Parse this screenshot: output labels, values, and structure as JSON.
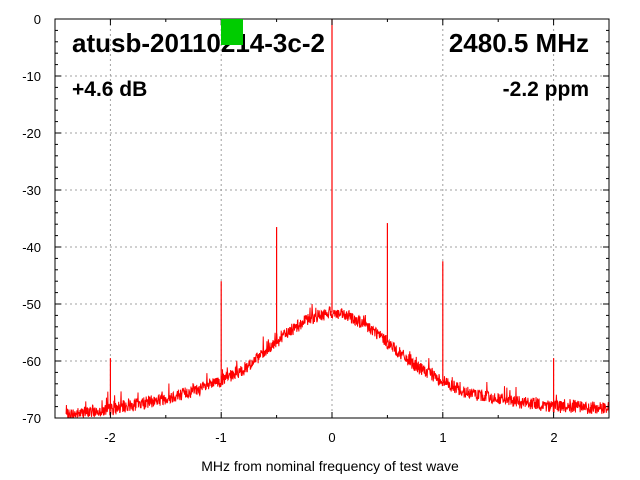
{
  "chart_data": {
    "type": "line",
    "title": "",
    "xlabel": "MHz from nominal frequency of test wave",
    "ylabel": "",
    "xlim": [
      -2.5,
      2.5
    ],
    "ylim": [
      -70,
      0
    ],
    "xticks": [
      -2,
      -1,
      0,
      1,
      2
    ],
    "yticks": [
      0,
      -10,
      -20,
      -30,
      -40,
      -50,
      -60,
      -70
    ],
    "grid": true,
    "series_color": "#ff0000",
    "noise_floor": {
      "x": [
        -2.4,
        -2.0,
        -1.6,
        -1.2,
        -1.0,
        -0.8,
        -0.6,
        -0.4,
        -0.2,
        0.0,
        0.2,
        0.4,
        0.6,
        0.8,
        1.0,
        1.2,
        1.6,
        2.0,
        2.5
      ],
      "y": [
        -69.5,
        -68.5,
        -67.0,
        -65.0,
        -63.5,
        -61.5,
        -58.5,
        -55.0,
        -52.5,
        -51.5,
        -52.5,
        -55.0,
        -58.5,
        -61.5,
        -63.5,
        -65.5,
        -67.0,
        -68.0,
        -68.3
      ]
    },
    "spurs": [
      {
        "x": -2.0,
        "y": -59.5
      },
      {
        "x": -1.0,
        "y": -46.0
      },
      {
        "x": -0.5,
        "y": -36.5
      },
      {
        "x": 0.0,
        "y": 0.0
      },
      {
        "x": 0.5,
        "y": -35.8
      },
      {
        "x": 1.0,
        "y": -42.5
      },
      {
        "x": 2.0,
        "y": -59.5
      }
    ],
    "annotations": {
      "device": "atusb-20110214-3c-2",
      "frequency": "2480.5 MHz",
      "gain": "+4.6 dB",
      "ppm": "-2.2 ppm"
    },
    "marker_color": "#00cc00",
    "x_tick_labels": [
      "-2",
      "-1",
      "0",
      "1",
      "2"
    ],
    "y_tick_labels": [
      "0",
      "-10",
      "-20",
      "-30",
      "-40",
      "-50",
      "-60",
      "-70"
    ]
  }
}
